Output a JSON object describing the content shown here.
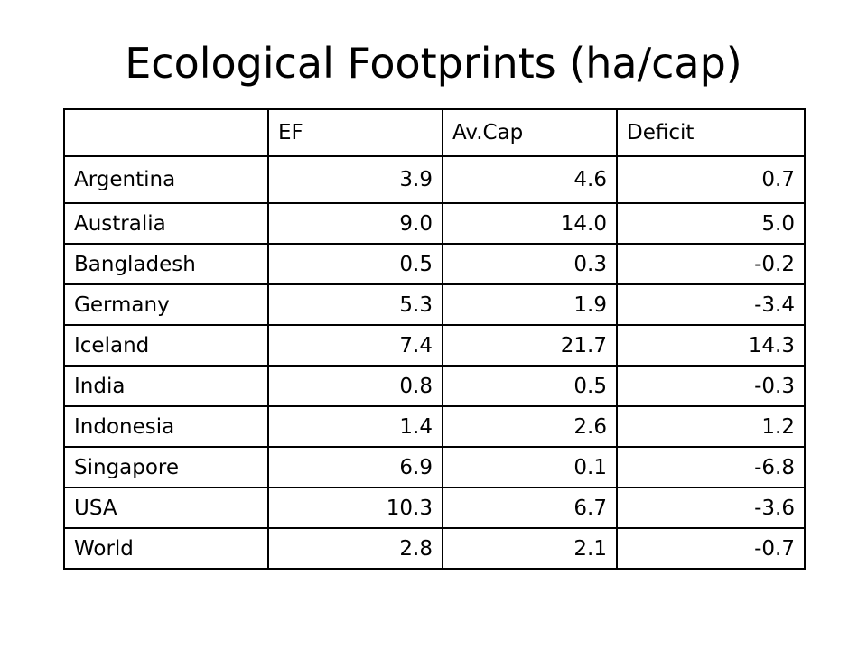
{
  "title": "Ecological Footprints (ha/cap)",
  "table": {
    "headers": [
      "",
      "EF",
      "Av.Cap",
      "Deficit"
    ],
    "rows": [
      {
        "country": "Argentina",
        "ef": "3.9",
        "avcap": "4.6",
        "deficit": "0.7"
      },
      {
        "country": "Australia",
        "ef": "9.0",
        "avcap": "14.0",
        "deficit": "5.0"
      },
      {
        "country": "Bangladesh",
        "ef": "0.5",
        "avcap": "0.3",
        "deficit": "-0.2"
      },
      {
        "country": "Germany",
        "ef": "5.3",
        "avcap": "1.9",
        "deficit": "-3.4"
      },
      {
        "country": "Iceland",
        "ef": "7.4",
        "avcap": "21.7",
        "deficit": "14.3"
      },
      {
        "country": "India",
        "ef": "0.8",
        "avcap": "0.5",
        "deficit": "-0.3"
      },
      {
        "country": "Indonesia",
        "ef": "1.4",
        "avcap": "2.6",
        "deficit": "1.2"
      },
      {
        "country": "Singapore",
        "ef": "6.9",
        "avcap": "0.1",
        "deficit": "-6.8"
      },
      {
        "country": "USA",
        "ef": "10.3",
        "avcap": "6.7",
        "deficit": "-3.6"
      },
      {
        "country": "World",
        "ef": "2.8",
        "avcap": "2.1",
        "deficit": "-0.7"
      }
    ]
  }
}
